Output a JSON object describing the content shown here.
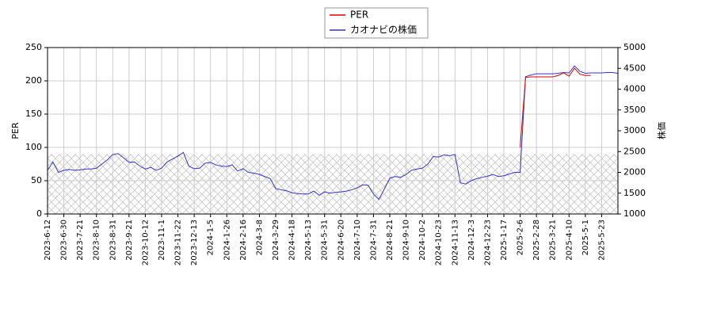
{
  "chart_data": {
    "type": "line",
    "categories": [
      "2023-6-12",
      null,
      null,
      "2023-6-30",
      null,
      null,
      "2023-7-21",
      null,
      null,
      "2023-8-10",
      null,
      null,
      "2023-8-31",
      null,
      null,
      "2023-9-21",
      null,
      null,
      "2023-10-12",
      null,
      null,
      "2023-11-1",
      null,
      null,
      "2023-11-22",
      null,
      null,
      "2023-12-13",
      null,
      null,
      "2024-1-5",
      null,
      null,
      "2024-1-26",
      null,
      null,
      "2024-2-16",
      null,
      null,
      "2024-3-8",
      null,
      null,
      "2024-3-29",
      null,
      null,
      "2024-4-18",
      null,
      null,
      "2024-5-13",
      null,
      null,
      "2024-5-31",
      null,
      null,
      "2024-6-20",
      null,
      null,
      "2024-7-10",
      null,
      null,
      "2024-7-31",
      null,
      null,
      "2024-8-21",
      null,
      null,
      "2024-9-10",
      null,
      null,
      "2024-10-2",
      null,
      null,
      "2024-10-23",
      null,
      null,
      "2024-11-13",
      null,
      null,
      "2024-12-3",
      null,
      null,
      "2024-12-23",
      null,
      null,
      "2025-1-17",
      null,
      null,
      "2025-2-6",
      null,
      null,
      "2025-2-28",
      null,
      null,
      "2025-3-21",
      null,
      null,
      "2025-4-10",
      null,
      null,
      "2025-5-1",
      null,
      null,
      "2025-5-23",
      null,
      null,
      null
    ],
    "series": [
      {
        "name": "PER",
        "color": "#dd0000",
        "axis": "y",
        "values": [
          null,
          null,
          null,
          null,
          null,
          null,
          null,
          null,
          null,
          null,
          null,
          null,
          null,
          null,
          null,
          null,
          null,
          null,
          null,
          null,
          null,
          null,
          null,
          null,
          null,
          null,
          null,
          null,
          null,
          null,
          null,
          null,
          null,
          null,
          null,
          null,
          null,
          null,
          null,
          null,
          null,
          null,
          null,
          null,
          null,
          null,
          null,
          null,
          null,
          null,
          null,
          null,
          null,
          null,
          null,
          null,
          null,
          null,
          null,
          null,
          null,
          null,
          null,
          null,
          null,
          null,
          null,
          null,
          null,
          null,
          null,
          null,
          null,
          null,
          null,
          null,
          null,
          null,
          null,
          null,
          null,
          null,
          null,
          null,
          null,
          null,
          null,
          100,
          205,
          206,
          206,
          206,
          206,
          206,
          208,
          212,
          207,
          219,
          210,
          208,
          208,
          null,
          null,
          null,
          null,
          null
        ]
      },
      {
        "name": "カオナビの株価",
        "color": "#3333cc",
        "axis": "y2",
        "values": [
          2050,
          2250,
          2000,
          2050,
          2070,
          2050,
          2060,
          2080,
          2080,
          2100,
          2200,
          2300,
          2430,
          2450,
          2350,
          2240,
          2250,
          2150,
          2080,
          2120,
          2050,
          2100,
          2250,
          2320,
          2390,
          2480,
          2150,
          2090,
          2100,
          2220,
          2240,
          2180,
          2150,
          2140,
          2180,
          2030,
          2090,
          2000,
          1980,
          1950,
          1900,
          1850,
          1610,
          1580,
          1560,
          1510,
          1490,
          1480,
          1480,
          1550,
          1450,
          1530,
          1500,
          1520,
          1530,
          1550,
          1580,
          1630,
          1700,
          1690,
          1480,
          1350,
          1600,
          1860,
          1900,
          1880,
          1950,
          2050,
          2080,
          2100,
          2200,
          2380,
          2370,
          2420,
          2400,
          2430,
          1750,
          1720,
          1800,
          1850,
          1880,
          1910,
          1950,
          1900,
          1920,
          1960,
          2000,
          2000,
          4300,
          4340,
          4370,
          4370,
          4370,
          4370,
          4380,
          4400,
          4390,
          4560,
          4430,
          4380,
          4390,
          4390,
          4390,
          4400,
          4400,
          4380
        ]
      }
    ],
    "ylabel": "PER",
    "y2label": "株価",
    "ylim": [
      0,
      250
    ],
    "yticks": [
      0,
      50,
      100,
      150,
      200,
      250
    ],
    "y2lim": [
      1000,
      5000
    ],
    "y2ticks": [
      1000,
      1500,
      2000,
      2500,
      3000,
      3500,
      4000,
      4500,
      5000
    ],
    "band": [
      0,
      90
    ],
    "grid": true,
    "legend": "upper center"
  }
}
